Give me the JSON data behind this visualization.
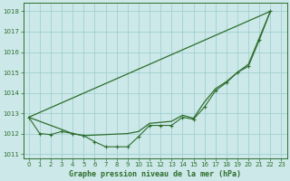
{
  "title": "Graphe pression niveau de la mer (hPa)",
  "background_color": "#cce8e8",
  "grid_color": "#99cccc",
  "line_color": "#2d6e2d",
  "xlim": [
    -0.5,
    23.5
  ],
  "ylim": [
    1010.8,
    1018.4
  ],
  "yticks": [
    1011,
    1012,
    1013,
    1014,
    1015,
    1016,
    1017,
    1018
  ],
  "xticks": [
    0,
    1,
    2,
    3,
    4,
    5,
    6,
    7,
    8,
    9,
    10,
    11,
    12,
    13,
    14,
    15,
    16,
    17,
    18,
    19,
    20,
    21,
    22,
    23
  ],
  "xtick_labels": [
    "0",
    "1",
    "2",
    "3",
    "4",
    "5",
    "6",
    "7",
    "8",
    "9",
    "10",
    "11",
    "12",
    "13",
    "14",
    "15",
    "16",
    "17",
    "18",
    "19",
    "20",
    "21",
    "22",
    "23"
  ],
  "line1_x": [
    0,
    1,
    2,
    3,
    4,
    5,
    6,
    7,
    8,
    9,
    10,
    11,
    12,
    13,
    14,
    15,
    16,
    17,
    18,
    19,
    20,
    21,
    22
  ],
  "line1_y": [
    1012.8,
    1012.0,
    1011.95,
    1012.1,
    1012.0,
    1011.9,
    1011.6,
    1011.35,
    1011.35,
    1011.35,
    1011.85,
    1012.4,
    1012.4,
    1012.4,
    1012.8,
    1012.7,
    1013.3,
    1014.1,
    1014.5,
    1015.0,
    1015.3,
    1016.6,
    1018.0
  ],
  "line2_x": [
    0,
    3,
    4,
    5,
    9,
    10,
    11,
    12,
    13,
    14,
    15,
    16,
    17,
    18,
    19,
    20,
    21,
    22
  ],
  "line2_y": [
    1012.8,
    1012.2,
    1012.0,
    1011.9,
    1012.0,
    1012.1,
    1012.5,
    1012.55,
    1012.6,
    1012.9,
    1012.75,
    1013.55,
    1014.2,
    1014.55,
    1015.0,
    1015.4,
    1016.7,
    1018.0
  ],
  "line3_x": [
    0,
    22
  ],
  "line3_y": [
    1012.8,
    1018.0
  ]
}
